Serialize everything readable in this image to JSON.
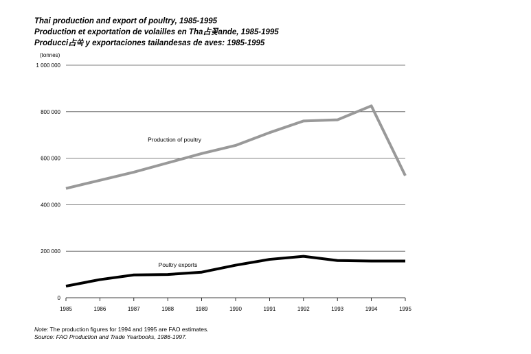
{
  "title_lines": [
    "Thai production and export of poultry, 1985-1995",
    "Production et exportation de volailles en Tha占꽃ande, 1985-1995",
    "Producci占쏙 y exportaciones tailandesas de aves: 1985-1995"
  ],
  "notes": {
    "note_label": "Note:",
    "note_text": " The production figures for 1994 and 1995 are FAO estimates.",
    "source_text": "Source: FAO Production and Trade Yearbooks, 1986-1997."
  },
  "chart_data": {
    "type": "line",
    "unit_label": "(tonnes)",
    "x": [
      "1985",
      "1986",
      "1987",
      "1988",
      "1989",
      "1990",
      "1991",
      "1992",
      "1993",
      "1994",
      "1995"
    ],
    "y_ticks": [
      0,
      200000,
      400000,
      600000,
      800000,
      1000000
    ],
    "y_tick_labels": [
      "0",
      "200 000",
      "400 000",
      "600 000",
      "800 000",
      "1 000 000"
    ],
    "ylim": [
      0,
      1000000
    ],
    "grid": true,
    "series": [
      {
        "name": "Production of poultry",
        "color": "#999999",
        "values": [
          470000,
          505000,
          540000,
          580000,
          620000,
          655000,
          710000,
          760000,
          765000,
          825000,
          525000
        ]
      },
      {
        "name": "Poultry exports",
        "color": "#000000",
        "values": [
          50000,
          78000,
          98000,
          100000,
          110000,
          140000,
          165000,
          178000,
          160000,
          158000,
          158000
        ]
      }
    ]
  }
}
